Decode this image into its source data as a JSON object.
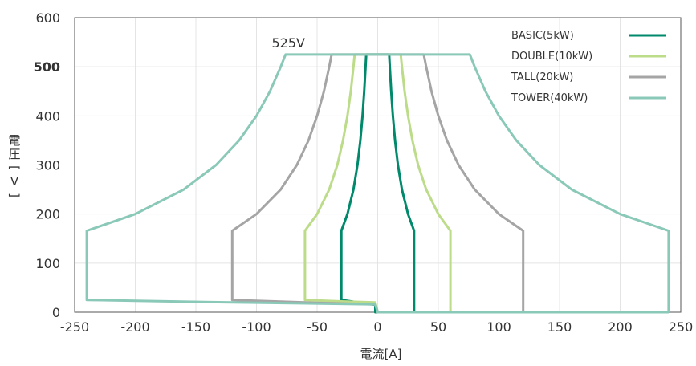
{
  "chart_data": {
    "type": "line",
    "xlabel": "電流[A]",
    "ylabel": "電圧[V]",
    "xlim": [
      -250,
      250
    ],
    "ylim": [
      0,
      600
    ],
    "x_ticks": [
      -250,
      -200,
      -150,
      -100,
      -50,
      0,
      50,
      100,
      150,
      200,
      250
    ],
    "y_ticks": [
      0,
      100,
      200,
      300,
      400,
      500,
      600
    ],
    "highlight_tick": {
      "value": 500,
      "label": "500",
      "color": "#00896b"
    },
    "grid": true,
    "legend_position": "top-right",
    "annotations": [
      {
        "text": "525V",
        "x": -75,
        "y": 525
      }
    ],
    "series": [
      {
        "name": "BASIC(5kW)",
        "color": "#00896b",
        "points": [
          [
            30,
            0
          ],
          [
            30,
            166
          ],
          [
            25,
            200
          ],
          [
            20,
            250
          ],
          [
            16.7,
            300
          ],
          [
            14.3,
            350
          ],
          [
            12.5,
            400
          ],
          [
            11.1,
            450
          ],
          [
            10,
            500
          ],
          [
            9.5,
            525
          ],
          [
            -9.5,
            525
          ],
          [
            -10,
            500
          ],
          [
            -11.1,
            450
          ],
          [
            -12.5,
            400
          ],
          [
            -14.3,
            350
          ],
          [
            -16.7,
            300
          ],
          [
            -20,
            250
          ],
          [
            -25,
            200
          ],
          [
            -30,
            166
          ],
          [
            -30,
            25
          ],
          [
            -2,
            15
          ],
          [
            -2,
            0
          ],
          [
            0,
            0
          ],
          [
            30,
            0
          ]
        ]
      },
      {
        "name": "DOUBLE(10kW)",
        "color": "#bcdc8a",
        "points": [
          [
            60,
            0
          ],
          [
            60,
            166
          ],
          [
            50,
            200
          ],
          [
            40,
            250
          ],
          [
            33.3,
            300
          ],
          [
            28.6,
            350
          ],
          [
            25,
            400
          ],
          [
            22.2,
            450
          ],
          [
            20,
            500
          ],
          [
            19,
            525
          ],
          [
            -19,
            525
          ],
          [
            -20,
            500
          ],
          [
            -22.2,
            450
          ],
          [
            -25,
            400
          ],
          [
            -28.6,
            350
          ],
          [
            -33.3,
            300
          ],
          [
            -40,
            250
          ],
          [
            -50,
            200
          ],
          [
            -60,
            166
          ],
          [
            -60,
            25
          ],
          [
            -30,
            22
          ],
          [
            -2,
            20
          ],
          [
            0,
            0
          ],
          [
            60,
            0
          ]
        ]
      },
      {
        "name": "TALL(20kW)",
        "color": "#a5a5a5",
        "points": [
          [
            120,
            0
          ],
          [
            120,
            166
          ],
          [
            100,
            200
          ],
          [
            80,
            250
          ],
          [
            66.7,
            300
          ],
          [
            57.1,
            350
          ],
          [
            50,
            400
          ],
          [
            44.4,
            450
          ],
          [
            40,
            500
          ],
          [
            38,
            525
          ],
          [
            -38,
            525
          ],
          [
            -40,
            500
          ],
          [
            -44.4,
            450
          ],
          [
            -50,
            400
          ],
          [
            -57.1,
            350
          ],
          [
            -66.7,
            300
          ],
          [
            -80,
            250
          ],
          [
            -100,
            200
          ],
          [
            -120,
            166
          ],
          [
            -120,
            25
          ],
          [
            -60,
            20
          ],
          [
            -2,
            16
          ],
          [
            0,
            0
          ],
          [
            120,
            0
          ]
        ]
      },
      {
        "name": "TOWER(40kW)",
        "color": "#8ac8b8",
        "points": [
          [
            240,
            0
          ],
          [
            240,
            166
          ],
          [
            200,
            200
          ],
          [
            160,
            250
          ],
          [
            133.3,
            300
          ],
          [
            114.3,
            350
          ],
          [
            100,
            400
          ],
          [
            88.9,
            450
          ],
          [
            80,
            500
          ],
          [
            76,
            525
          ],
          [
            -76,
            525
          ],
          [
            -80,
            500
          ],
          [
            -88.9,
            450
          ],
          [
            -100,
            400
          ],
          [
            -114.3,
            350
          ],
          [
            -133.3,
            300
          ],
          [
            -160,
            250
          ],
          [
            -200,
            200
          ],
          [
            -240,
            166
          ],
          [
            -240,
            25
          ],
          [
            -120,
            20
          ],
          [
            -2,
            16
          ],
          [
            0,
            0
          ],
          [
            240,
            0
          ]
        ]
      }
    ]
  }
}
